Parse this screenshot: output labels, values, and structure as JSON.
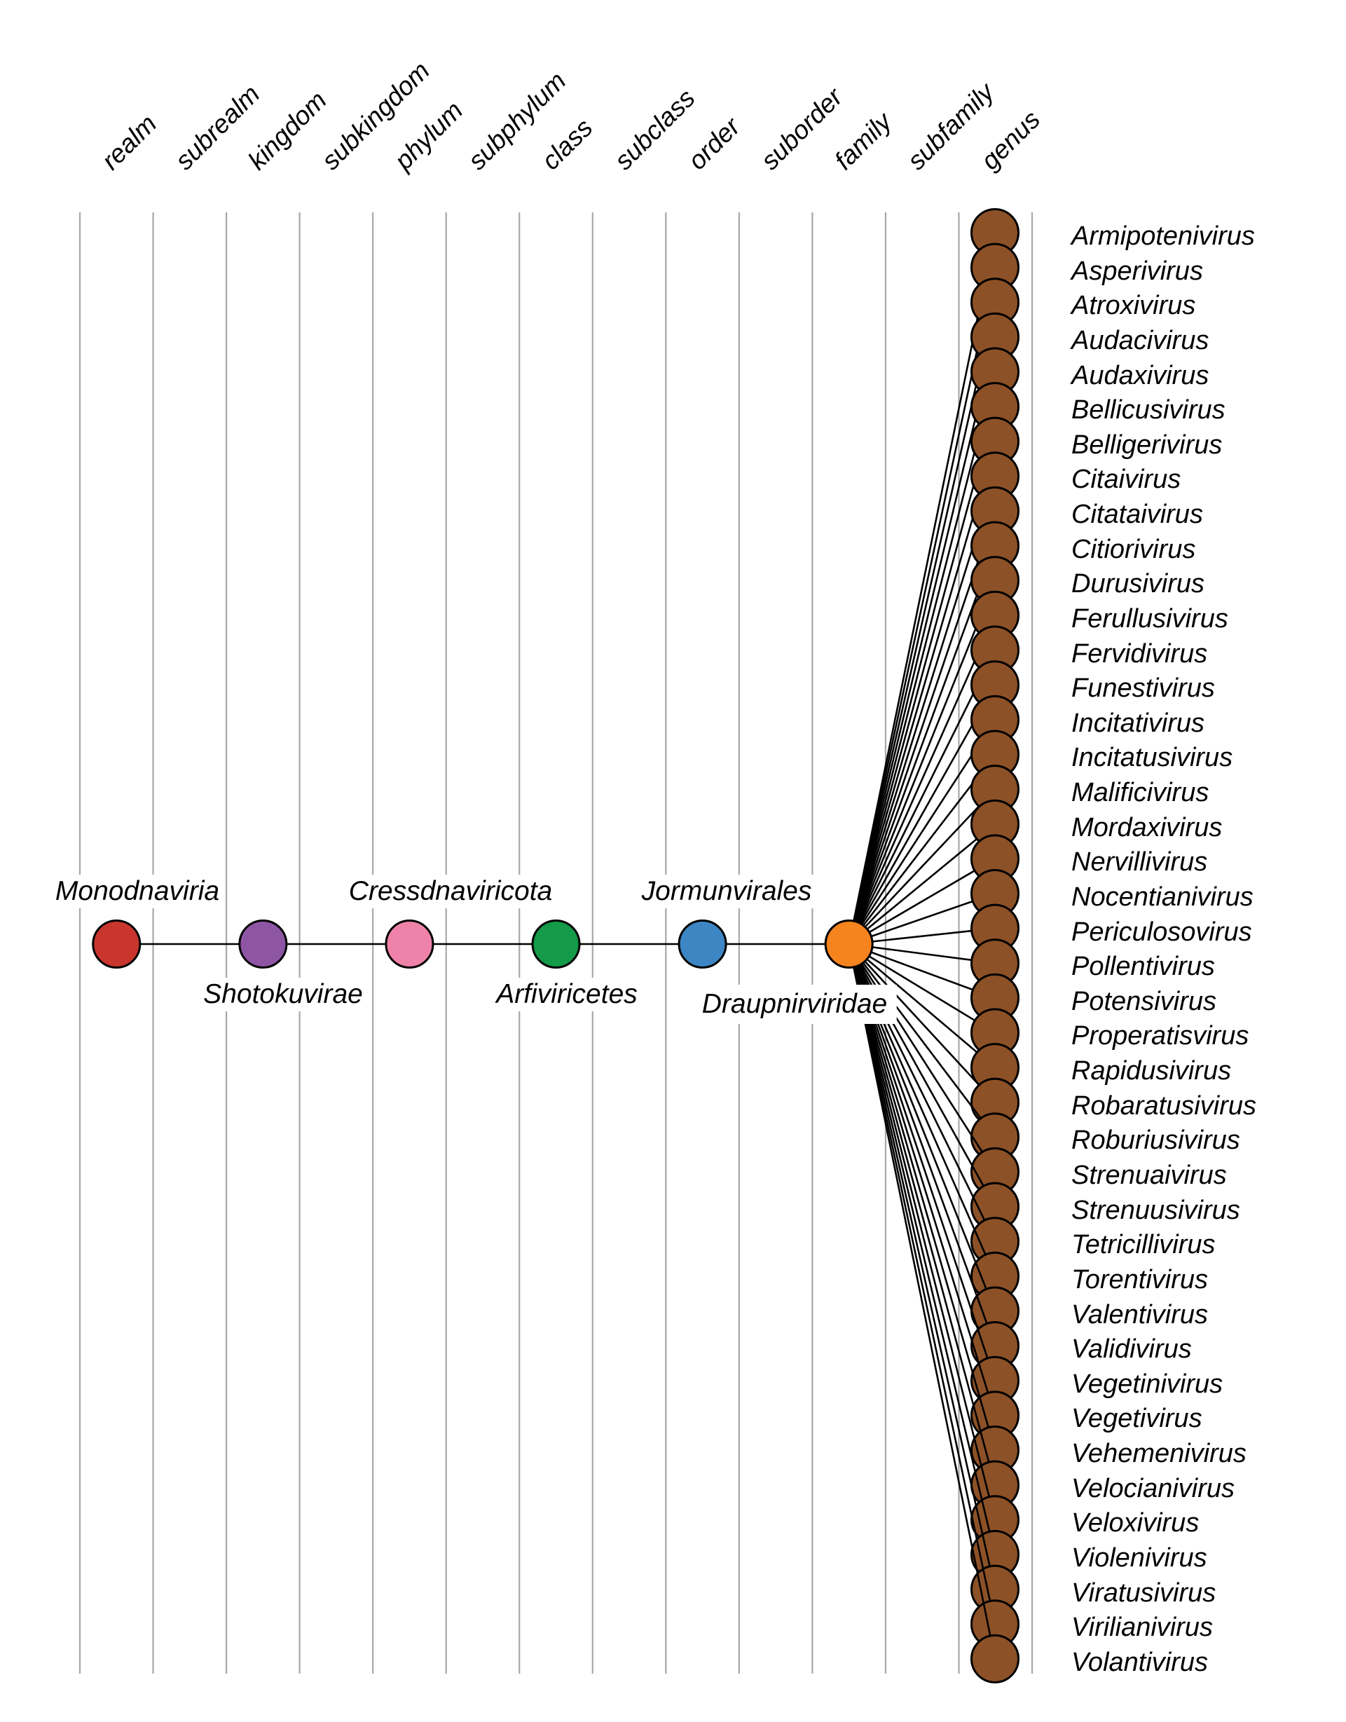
{
  "figure": {
    "description": "Viral taxonomy lineage plot from realm to genus",
    "ranks": [
      "realm",
      "subrealm",
      "kingdom",
      "subkingdom",
      "phylum",
      "subphylum",
      "class",
      "subclass",
      "order",
      "suborder",
      "family",
      "subfamily",
      "genus"
    ],
    "lineage": [
      {
        "rank": "realm",
        "name": "Monodnaviria",
        "color": "#c9362e",
        "label_side": "above"
      },
      {
        "rank": "kingdom",
        "name": "Shotokuvirae",
        "color": "#8f55a5",
        "label_side": "below"
      },
      {
        "rank": "phylum",
        "name": "Cressdnaviricota",
        "color": "#ef82a9",
        "label_side": "above"
      },
      {
        "rank": "class",
        "name": "Arfiviricetes",
        "color": "#149a48",
        "label_side": "below"
      },
      {
        "rank": "order",
        "name": "Jormunvirales",
        "color": "#3d86c3",
        "label_side": "above"
      },
      {
        "rank": "family",
        "name": "Draupnirviridae",
        "color": "#f5831e",
        "label_side": "below-boxed"
      }
    ],
    "genus": {
      "color": "#8c5127",
      "names": [
        "Armipotenivirus",
        "Asperivirus",
        "Atroxivirus",
        "Audacivirus",
        "Audaxivirus",
        "Bellicusivirus",
        "Belligerivirus",
        "Citaivirus",
        "Citataivirus",
        "Citiorivirus",
        "Durusivirus",
        "Ferullusivirus",
        "Fervidivirus",
        "Funestivirus",
        "Incitativirus",
        "Incitatusivirus",
        "Malificivirus",
        "Mordaxivirus",
        "Nervillivirus",
        "Nocentianivirus",
        "Periculosovirus",
        "Pollentivirus",
        "Potensivirus",
        "Properatisvirus",
        "Rapidusivirus",
        "Robaratusivirus",
        "Roburiusivirus",
        "Strenuaivirus",
        "Strenuusivirus",
        "Tetricillivirus",
        "Torentivirus",
        "Valentivirus",
        "Validivirus",
        "Vegetinivirus",
        "Vegetivirus",
        "Vehemenivirus",
        "Velocianivirus",
        "Veloxivirus",
        "Violenivirus",
        "Viratusivirus",
        "Virilianivirus",
        "Volantivirus"
      ]
    },
    "colors": {
      "gridline": "#a8a8a8",
      "edge": "#000000",
      "node_outline": "#000000",
      "text": "#000000",
      "background": "#ffffff"
    }
  }
}
